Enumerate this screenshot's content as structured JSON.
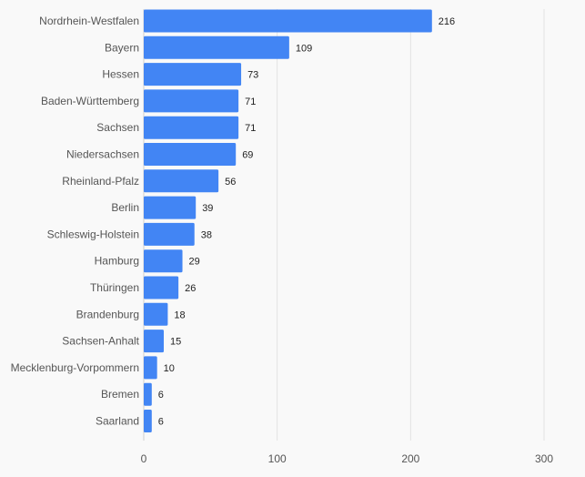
{
  "chart_data": {
    "type": "bar",
    "orientation": "horizontal",
    "categories": [
      "Nordrhein-Westfalen",
      "Bayern",
      "Hessen",
      "Baden-Württemberg",
      "Sachsen",
      "Niedersachsen",
      "Rheinland-Pfalz",
      "Berlin",
      "Schleswig-Holstein",
      "Hamburg",
      "Thüringen",
      "Brandenburg",
      "Sachsen-Anhalt",
      "Mecklenburg-Vorpommern",
      "Bremen",
      "Saarland"
    ],
    "values": [
      216,
      109,
      73,
      71,
      71,
      69,
      56,
      39,
      38,
      29,
      26,
      18,
      15,
      10,
      6,
      6
    ],
    "xlim": [
      0,
      300
    ],
    "x_ticks": [
      0,
      100,
      200,
      300
    ],
    "grid": true,
    "data_labels": true,
    "colors": {
      "bar": "#4285f4",
      "grid": "#e3e3e3",
      "background": "#f9f9f9"
    }
  }
}
